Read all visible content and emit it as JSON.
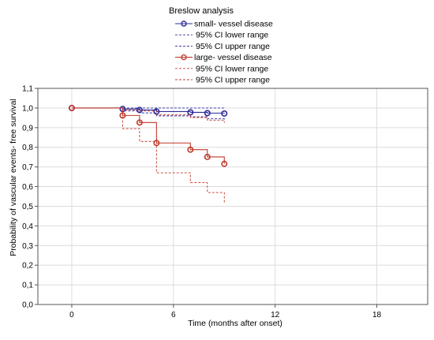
{
  "chart_data": {
    "type": "line",
    "title": "",
    "xlabel": "Time (months after onset)",
    "ylabel": "Probability of vascular events- free survival",
    "xlim": [
      -2,
      21
    ],
    "ylim": [
      0,
      1.1
    ],
    "x_ticks": [
      0,
      6,
      12,
      18
    ],
    "x_tick_labels": [
      "0",
      "6",
      "12",
      "18"
    ],
    "y_ticks": [
      0,
      0.1,
      0.2,
      0.3,
      0.4,
      0.5,
      0.6,
      0.7,
      0.8,
      0.9,
      1.0,
      1.1
    ],
    "y_tick_labels": [
      "0,0",
      "0,1",
      "0,2",
      "0,3",
      "0,4",
      "0,5",
      "0,6",
      "0,7",
      "0,8",
      "0,9",
      "1,0",
      "1,1"
    ],
    "grid": true,
    "legend": {
      "title": "Breslow analysis",
      "placement": "top-center"
    },
    "series": [
      {
        "name": "small- vessel disease",
        "kind": "estimate",
        "color": "#2b2b9c",
        "markers": true,
        "x": [
          0,
          3,
          4,
          5,
          7,
          8,
          9
        ],
        "y": [
          1.0,
          0.995,
          0.99,
          0.982,
          0.978,
          0.974,
          0.972
        ]
      },
      {
        "name": "95% CI lower range",
        "kind": "ci",
        "color": "#2b2b9c",
        "markers": false,
        "x": [
          0,
          3,
          4,
          5,
          7,
          8,
          9
        ],
        "y": [
          1.0,
          0.985,
          0.975,
          0.96,
          0.955,
          0.945,
          0.94
        ]
      },
      {
        "name": "95% CI upper range",
        "kind": "ci",
        "color": "#2b2b9c",
        "markers": false,
        "x": [
          0,
          3,
          4,
          5,
          7,
          8,
          9
        ],
        "y": [
          1.0,
          1.0,
          1.0,
          1.0,
          1.0,
          1.0,
          1.0
        ]
      },
      {
        "name": "large- vessel disease",
        "kind": "estimate",
        "color": "#c0392b",
        "markers": true,
        "x": [
          0,
          3,
          4,
          5,
          7,
          8,
          9
        ],
        "y": [
          1.0,
          0.962,
          0.926,
          0.822,
          0.788,
          0.751,
          0.716
        ]
      },
      {
        "name": "95% CI lower range",
        "kind": "ci",
        "color": "#c0392b",
        "markers": false,
        "x": [
          0,
          3,
          4,
          5,
          7,
          8,
          9
        ],
        "y": [
          1.0,
          0.895,
          0.83,
          0.67,
          0.62,
          0.57,
          0.52
        ]
      },
      {
        "name": "95% CI upper range",
        "kind": "ci",
        "color": "#c0392b",
        "markers": false,
        "x": [
          0,
          3,
          4,
          5,
          7,
          8,
          9
        ],
        "y": [
          1.0,
          0.99,
          0.985,
          0.965,
          0.952,
          0.938,
          0.925
        ]
      }
    ]
  }
}
